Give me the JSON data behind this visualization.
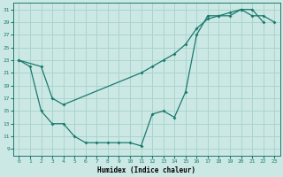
{
  "xlabel": "Humidex (Indice chaleur)",
  "bg_color": "#cce8e4",
  "grid_color": "#aad4ce",
  "line_color": "#1a7a6e",
  "xlim": [
    -0.5,
    23.5
  ],
  "ylim": [
    8.0,
    32.0
  ],
  "xticks": [
    0,
    1,
    2,
    3,
    4,
    5,
    6,
    7,
    8,
    9,
    10,
    11,
    12,
    13,
    14,
    15,
    16,
    17,
    18,
    19,
    20,
    21,
    22,
    23
  ],
  "yticks": [
    9,
    11,
    13,
    15,
    17,
    19,
    21,
    23,
    25,
    27,
    29,
    31
  ],
  "line1_x": [
    0,
    1,
    2,
    3,
    4,
    5,
    6,
    7,
    8,
    9,
    10,
    11,
    12,
    13,
    14,
    15,
    16,
    17,
    18,
    19,
    20,
    21,
    22
  ],
  "line1_y": [
    23,
    22,
    15,
    13,
    13,
    11,
    10,
    10,
    10,
    10,
    10,
    9.5,
    14.5,
    15,
    14,
    18,
    27,
    30,
    30,
    30,
    31,
    31,
    29
  ],
  "line2_x": [
    0,
    2,
    3,
    4,
    11,
    12,
    13,
    14,
    15,
    16,
    17,
    18,
    19,
    20,
    21,
    22,
    23
  ],
  "line2_y": [
    23,
    22,
    17,
    16,
    21,
    22,
    23,
    24,
    25.5,
    28,
    29.5,
    30,
    30.5,
    31,
    30,
    30,
    29
  ]
}
